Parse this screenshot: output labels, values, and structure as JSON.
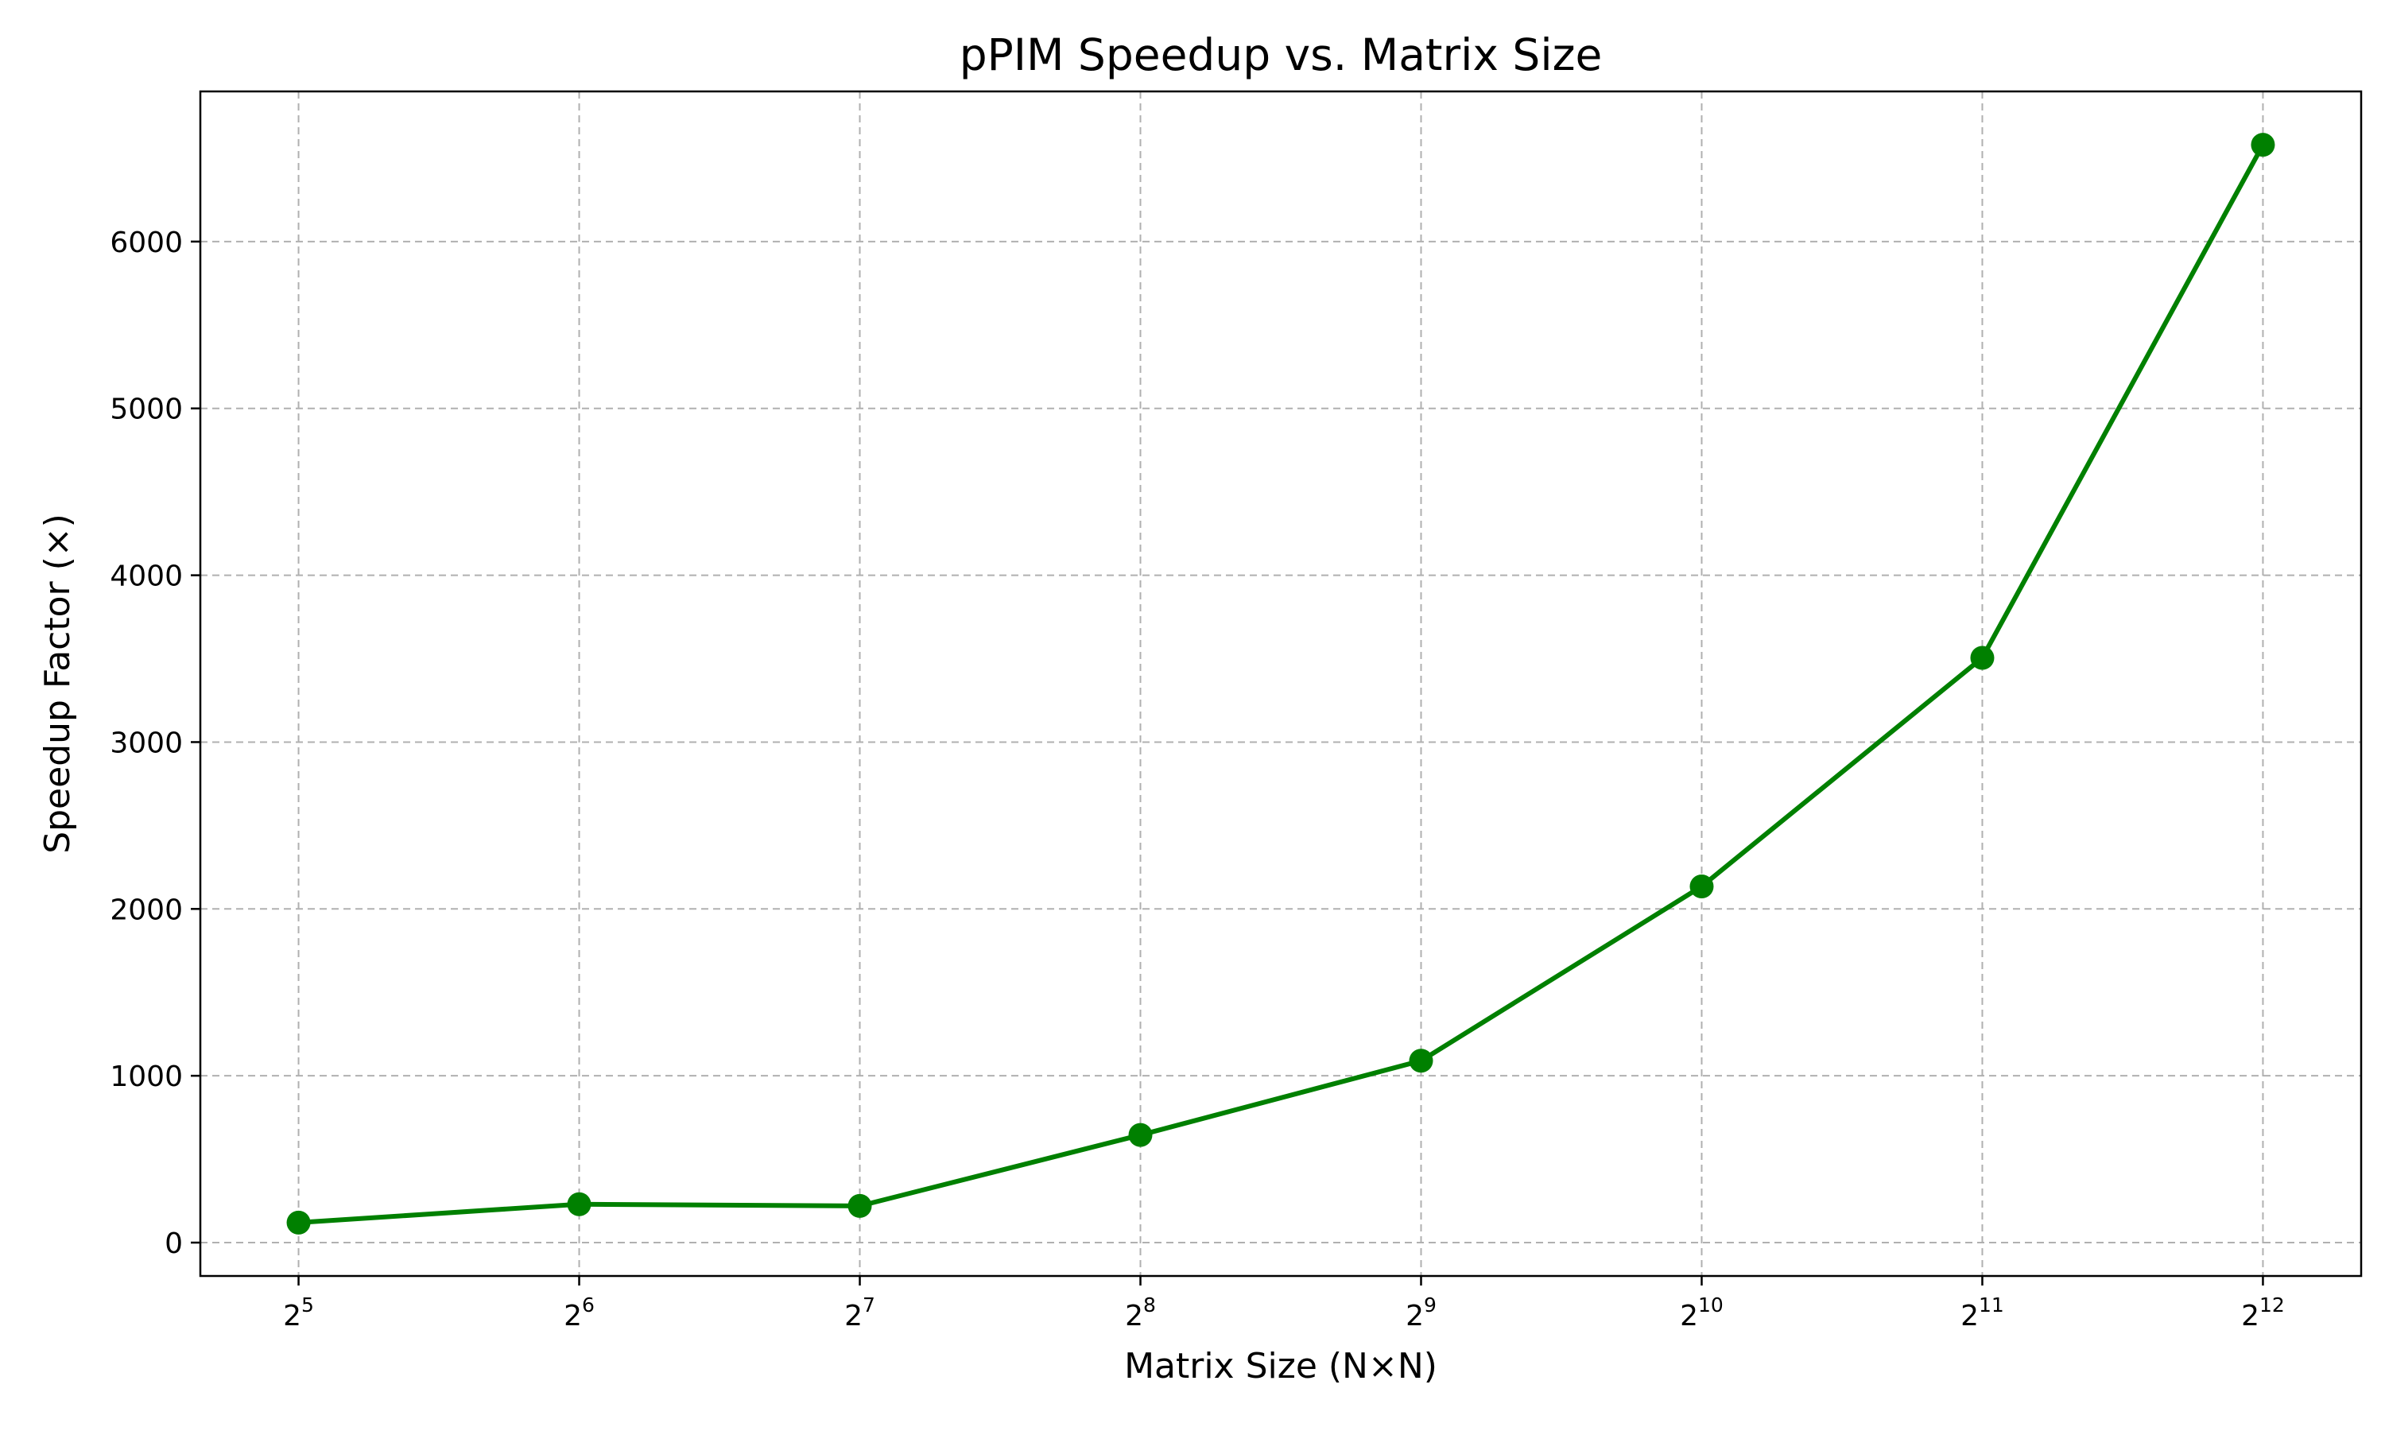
{
  "chart_data": {
    "type": "line",
    "title": "pPIM Speedup vs. Matrix Size",
    "xlabel": "Matrix Size (N×N)",
    "ylabel": "Speedup Factor (×)",
    "x_scale": "log2",
    "x": [
      32,
      64,
      128,
      256,
      512,
      1024,
      2048,
      4096
    ],
    "x_tick_labels": [
      {
        "base": "2",
        "exp": "5"
      },
      {
        "base": "2",
        "exp": "6"
      },
      {
        "base": "2",
        "exp": "7"
      },
      {
        "base": "2",
        "exp": "8"
      },
      {
        "base": "2",
        "exp": "9"
      },
      {
        "base": "2",
        "exp": "10"
      },
      {
        "base": "2",
        "exp": "11"
      },
      {
        "base": "2",
        "exp": "12"
      }
    ],
    "y_ticks": [
      0,
      1000,
      2000,
      3000,
      4000,
      5000,
      6000
    ],
    "y_tick_labels": [
      "0",
      "1000",
      "2000",
      "3000",
      "4000",
      "5000",
      "6000"
    ],
    "ylim": [
      -200,
      6900
    ],
    "xlim_log2": [
      4.65,
      12.35
    ],
    "grid": true,
    "series": [
      {
        "values": [
          120,
          230,
          220,
          645,
          1090,
          2135,
          3505,
          6580
        ],
        "color": "#008000",
        "marker": "circle"
      }
    ]
  }
}
